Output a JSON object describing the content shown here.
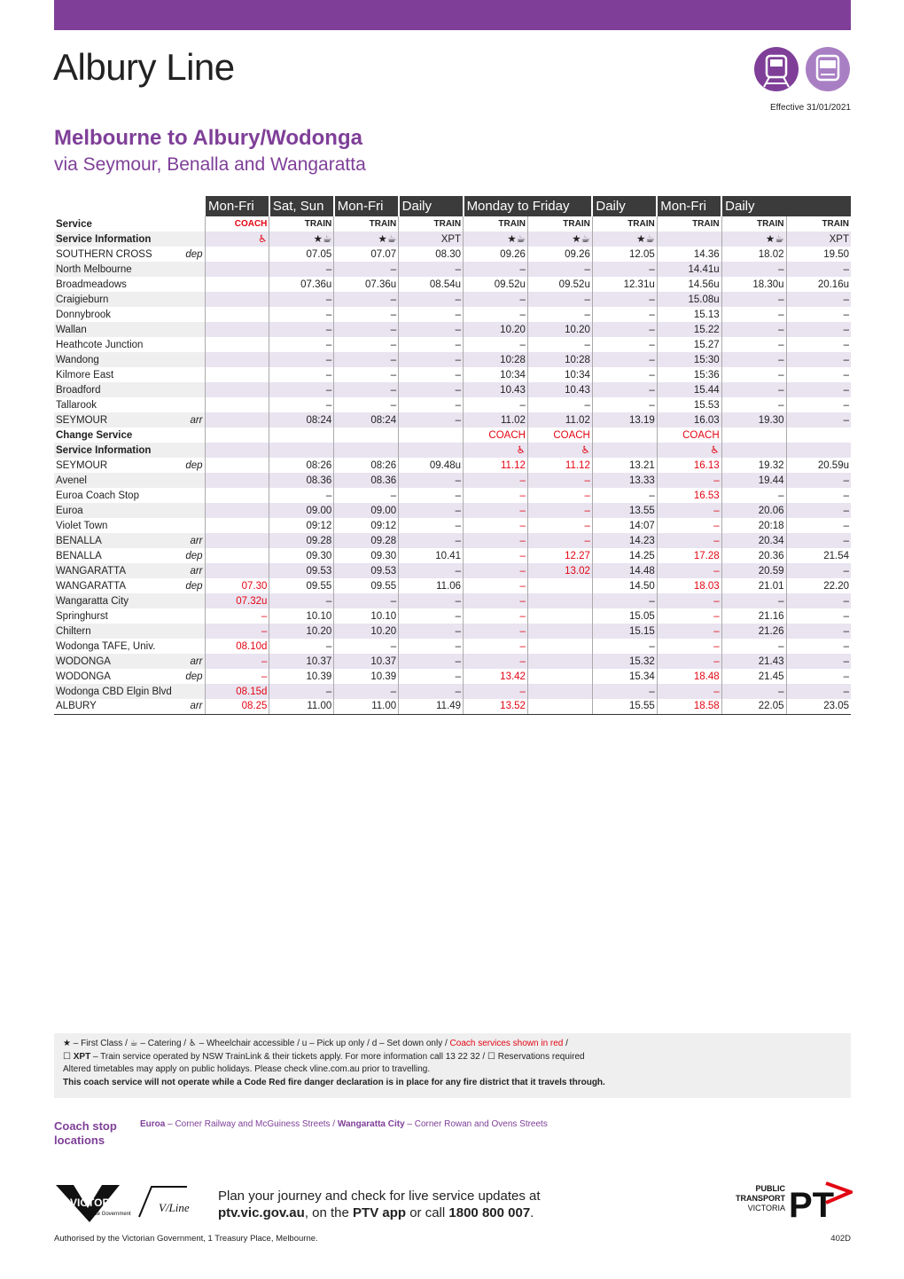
{
  "header": {
    "title": "Albury Line",
    "effective": "Effective 31/01/2021",
    "route": "Melbourne to Albury/Wodonga",
    "via": "via Seymour, Benalla and Wangaratta"
  },
  "table": {
    "groups": [
      "Mon-Fri",
      "Sat, Sun",
      "Mon-Fri",
      "Daily",
      "Monday to Friday",
      null,
      "Daily",
      "Mon-Fri",
      "Daily",
      null
    ],
    "coach_from": [
      0,
      null,
      null,
      null,
      14,
      14,
      null,
      14,
      null,
      null
    ],
    "coach_color": "#e30613",
    "rows": [
      {
        "label": "Service",
        "bold": true,
        "cells": [
          "COACH",
          "TRAIN",
          "TRAIN",
          "TRAIN",
          "TRAIN",
          "TRAIN",
          "TRAIN",
          "TRAIN",
          "TRAIN",
          "TRAIN"
        ]
      },
      {
        "label": "Service Information",
        "bold": true,
        "cells": [
          "♿",
          "★☕",
          "★☕",
          "XPT",
          "★☕",
          "★☕",
          "★☕",
          null,
          "★☕",
          "XPT"
        ]
      },
      {
        "label": "SOUTHERN CROSS",
        "note": "dep",
        "cells": [
          null,
          "07.05",
          "07.07",
          "08.30",
          "09.26",
          "09.26",
          "12.05",
          "14.36",
          "18.02",
          "19.50"
        ]
      },
      {
        "label": "North Melbourne",
        "cells": [
          null,
          "–",
          "–",
          "–",
          "–",
          "–",
          "–",
          "14.41u",
          "–",
          "–"
        ]
      },
      {
        "label": "Broadmeadows",
        "cells": [
          null,
          "07.36u",
          "07.36u",
          "08.54u",
          "09.52u",
          "09.52u",
          "12.31u",
          "14.56u",
          "18.30u",
          "20.16u"
        ]
      },
      {
        "label": "Craigieburn",
        "cells": [
          null,
          "–",
          "–",
          "–",
          "–",
          "–",
          "–",
          "15.08u",
          "–",
          "–"
        ]
      },
      {
        "label": "Donnybrook",
        "cells": [
          null,
          "–",
          "–",
          "–",
          "–",
          "–",
          "–",
          "15.13",
          "–",
          "–"
        ]
      },
      {
        "label": "Wallan",
        "cells": [
          null,
          "–",
          "–",
          "–",
          "10.20",
          "10.20",
          "–",
          "15.22",
          "–",
          "–"
        ]
      },
      {
        "label": "Heathcote Junction",
        "cells": [
          null,
          "–",
          "–",
          "–",
          "–",
          "–",
          "–",
          "15.27",
          "–",
          "–"
        ]
      },
      {
        "label": "Wandong",
        "cells": [
          null,
          "–",
          "–",
          "–",
          "10:28",
          "10:28",
          "–",
          "15:30",
          "–",
          "–"
        ]
      },
      {
        "label": "Kilmore East",
        "cells": [
          null,
          "–",
          "–",
          "–",
          "10:34",
          "10:34",
          "–",
          "15:36",
          "–",
          "–"
        ]
      },
      {
        "label": "Broadford",
        "cells": [
          null,
          "–",
          "–",
          "–",
          "10.43",
          "10.43",
          "–",
          "15.44",
          "–",
          "–"
        ]
      },
      {
        "label": "Tallarook",
        "cells": [
          null,
          "–",
          "–",
          "–",
          "–",
          "–",
          "–",
          "15.53",
          "–",
          "–"
        ]
      },
      {
        "label": "SEYMOUR",
        "note": "arr",
        "cells": [
          null,
          "08:24",
          "08:24",
          "–",
          "11.02",
          "11.02",
          "13.19",
          "16.03",
          "19.30",
          "–"
        ]
      },
      {
        "label": "Change Service",
        "bold": true,
        "cells": [
          null,
          null,
          null,
          null,
          "COACH",
          "COACH",
          null,
          "COACH",
          null,
          null
        ]
      },
      {
        "label": "Service Information",
        "bold": true,
        "cells": [
          null,
          null,
          null,
          null,
          "♿",
          "♿",
          null,
          "♿",
          null,
          null
        ]
      },
      {
        "label": "SEYMOUR",
        "note": "dep",
        "cells": [
          null,
          "08:26",
          "08:26",
          "09.48u",
          "11.12",
          "11.12",
          "13.21",
          "16.13",
          "19.32",
          "20.59u"
        ]
      },
      {
        "label": "Avenel",
        "cells": [
          null,
          "08.36",
          "08.36",
          "–",
          "–",
          "–",
          "13.33",
          "–",
          "19.44",
          "–"
        ]
      },
      {
        "label": "Euroa Coach Stop",
        "cells": [
          null,
          "–",
          "–",
          "–",
          "–",
          "–",
          "–",
          "16.53",
          "–",
          "–"
        ]
      },
      {
        "label": "Euroa",
        "cells": [
          null,
          "09.00",
          "09.00",
          "–",
          "–",
          "–",
          "13.55",
          "–",
          "20.06",
          "–"
        ]
      },
      {
        "label": "Violet Town",
        "cells": [
          null,
          "09:12",
          "09:12",
          "–",
          "–",
          "–",
          "14:07",
          "–",
          "20:18",
          "–"
        ]
      },
      {
        "label": "BENALLA",
        "note": "arr",
        "cells": [
          null,
          "09.28",
          "09.28",
          "–",
          "–",
          "–",
          "14.23",
          "–",
          "20.34",
          "–"
        ]
      },
      {
        "label": "BENALLA",
        "note": "dep",
        "cells": [
          null,
          "09.30",
          "09.30",
          "10.41",
          "–",
          "12.27",
          "14.25",
          "17.28",
          "20.36",
          "21.54"
        ]
      },
      {
        "label": "WANGARATTA",
        "note": "arr",
        "cells": [
          null,
          "09.53",
          "09.53",
          "–",
          "–",
          "13.02",
          "14.48",
          "–",
          "20.59",
          "–"
        ]
      },
      {
        "label": "WANGARATTA",
        "note": "dep",
        "cells": [
          "07.30",
          "09.55",
          "09.55",
          "11.06",
          "–",
          null,
          "14.50",
          "18.03",
          "21.01",
          "22.20"
        ]
      },
      {
        "label": "Wangaratta City",
        "cells": [
          "07.32u",
          "–",
          "–",
          "–",
          "–",
          null,
          "–",
          "–",
          "–",
          "–"
        ]
      },
      {
        "label": "Springhurst",
        "cells": [
          "–",
          "10.10",
          "10.10",
          "–",
          "–",
          null,
          "15.05",
          "–",
          "21.16",
          "–"
        ]
      },
      {
        "label": "Chiltern",
        "cells": [
          "–",
          "10.20",
          "10.20",
          "–",
          "–",
          null,
          "15.15",
          "–",
          "21.26",
          "–"
        ]
      },
      {
        "label": "Wodonga TAFE, Univ.",
        "cells": [
          "08.10d",
          "–",
          "–",
          "–",
          "–",
          null,
          "–",
          "–",
          "–",
          "–"
        ]
      },
      {
        "label": "WODONGA",
        "note": "arr",
        "cells": [
          "–",
          "10.37",
          "10.37",
          "–",
          "–",
          null,
          "15.32",
          "–",
          "21.43",
          "–"
        ]
      },
      {
        "label": "WODONGA",
        "note": "dep",
        "cells": [
          "–",
          "10.39",
          "10.39",
          "–",
          "13.42",
          null,
          "15.34",
          "18.48",
          "21.45",
          "–"
        ]
      },
      {
        "label": "Wodonga CBD Elgin Blvd",
        "cells": [
          "08.15d",
          "–",
          "–",
          "–",
          "–",
          null,
          "–",
          "–",
          "–",
          "–"
        ]
      },
      {
        "label": "ALBURY",
        "note": "arr",
        "cells": [
          "08.25",
          "11.00",
          "11.00",
          "11.49",
          "13.52",
          null,
          "15.55",
          "18.58",
          "22.05",
          "23.05"
        ]
      }
    ]
  },
  "legend": {
    "line1": "★ – First Class / ☕ – Catering / ♿ – Wheelchair accessible / u – Pick up only / d – Set down only / ",
    "line1_red": "Coach services shown in red",
    "line1_end": " /",
    "line2_xpt": "☐ XPT",
    "line2": " – Train service operated by NSW TrainLink & their tickets apply. For more information call 13 22 32 / ☐ Reservations required",
    "line3": "Altered timetables may apply on public holidays. Please check vline.com.au prior to travelling.",
    "line4": "This coach service will not operate while a Code Red fire danger declaration is in place for any fire district that it travels through."
  },
  "coach_stops": {
    "heading": "Coach stop locations",
    "stop1": "Euroa",
    "stop1_text": " – Corner Railway and McGuiness Streets / ",
    "stop2": "Wangaratta City",
    "stop2_text": " – Corner Rowan and Ovens Streets"
  },
  "footer": {
    "victoria": "VICTORIA",
    "victoria_sub": "State Government",
    "vline": "V/Line",
    "plan1": "Plan your journey and check for live service updates at",
    "plan2_site": "ptv.vic.gov.au",
    "plan2_mid": ", on the ",
    "plan2_app": "PTV app",
    "plan2_call": " or call ",
    "plan2_phone": "1800 800 007",
    "plan2_end": ".",
    "ptv1": "PUBLIC",
    "ptv2": "TRANSPORT",
    "ptv3": "VICTORIA",
    "ptv_mark": "PT",
    "authorised": "Authorised by the Victorian Government, 1 Treasury Place, Melbourne.",
    "code": "402D"
  }
}
